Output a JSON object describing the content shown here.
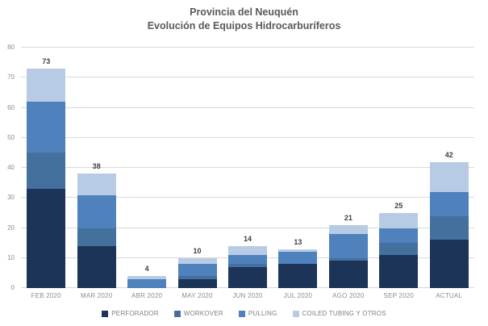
{
  "title": {
    "line1": "Provincia del Neuquén",
    "line2": "Evolución de Equipos Hidrocarburíferos"
  },
  "chart_data": {
    "type": "bar",
    "stacked": true,
    "title": "Provincia del Neuquén — Evolución de Equipos Hidrocarburíferos",
    "categories": [
      "FEB 2020",
      "MAR 2020",
      "ABR 2020",
      "MAY 2020",
      "JUN 2020",
      "JUL 2020",
      "AGO 2020",
      "SEP 2020",
      "ACTUAL"
    ],
    "series": [
      {
        "name": "PERFORADOR",
        "color": "#1c3458",
        "values": [
          33,
          14,
          0,
          3,
          7,
          8,
          9,
          11,
          16
        ]
      },
      {
        "name": "WORKOVER",
        "color": "#44709e",
        "values": [
          12,
          6,
          0,
          1,
          1,
          0,
          1,
          4,
          8
        ]
      },
      {
        "name": "PULLING",
        "color": "#4f81bd",
        "values": [
          17,
          11,
          3,
          4,
          3,
          4,
          8,
          5,
          8
        ]
      },
      {
        "name": "COILED TUBING Y OTROS",
        "color": "#b7cce4",
        "values": [
          11,
          7,
          1,
          2,
          3,
          1,
          3,
          5,
          10
        ]
      }
    ],
    "totals": [
      73,
      38,
      4,
      10,
      14,
      13,
      21,
      25,
      42
    ],
    "ylim": [
      0,
      80
    ],
    "yticks": [
      0,
      10,
      20,
      30,
      40,
      50,
      60,
      70,
      80
    ],
    "grid": true,
    "legend_position": "bottom"
  },
  "style": {
    "grid_color": "#d9d9d9",
    "axis_text_color": "#8c8c8c",
    "legend_text_color": "#7f7f7f",
    "title_color": "#595959",
    "value_label_color": "#404040"
  }
}
